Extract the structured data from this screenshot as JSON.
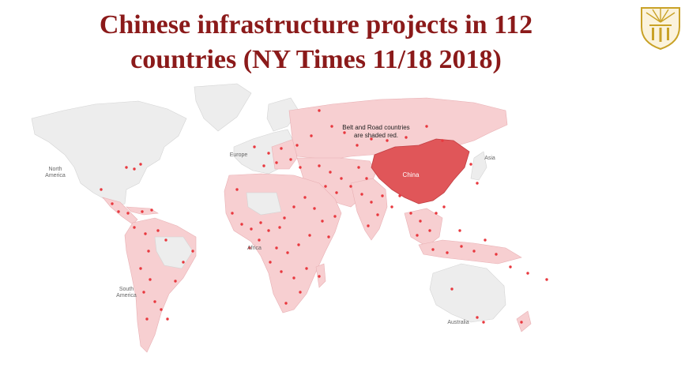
{
  "title": {
    "line1": "Chinese infrastructure projects in 112",
    "line2": "countries (NY Times 11/18 2018)"
  },
  "map": {
    "note_line1": "Belt and Road countries",
    "note_line2": "are shaded red.",
    "highlight_country": "China",
    "region_labels": {
      "north_america_1": "North",
      "north_america_2": "America",
      "europe": "Europe",
      "asia": "Asia",
      "africa": "Africa",
      "south_america_1": "South",
      "south_america_2": "America",
      "australia": "Australia"
    }
  },
  "colors": {
    "title": "#8b1a1a",
    "land": "#ededed",
    "belt_road": "#f7cfd1",
    "china": "#e05659",
    "dot": "#e8383e",
    "seal": "#c9a227"
  }
}
